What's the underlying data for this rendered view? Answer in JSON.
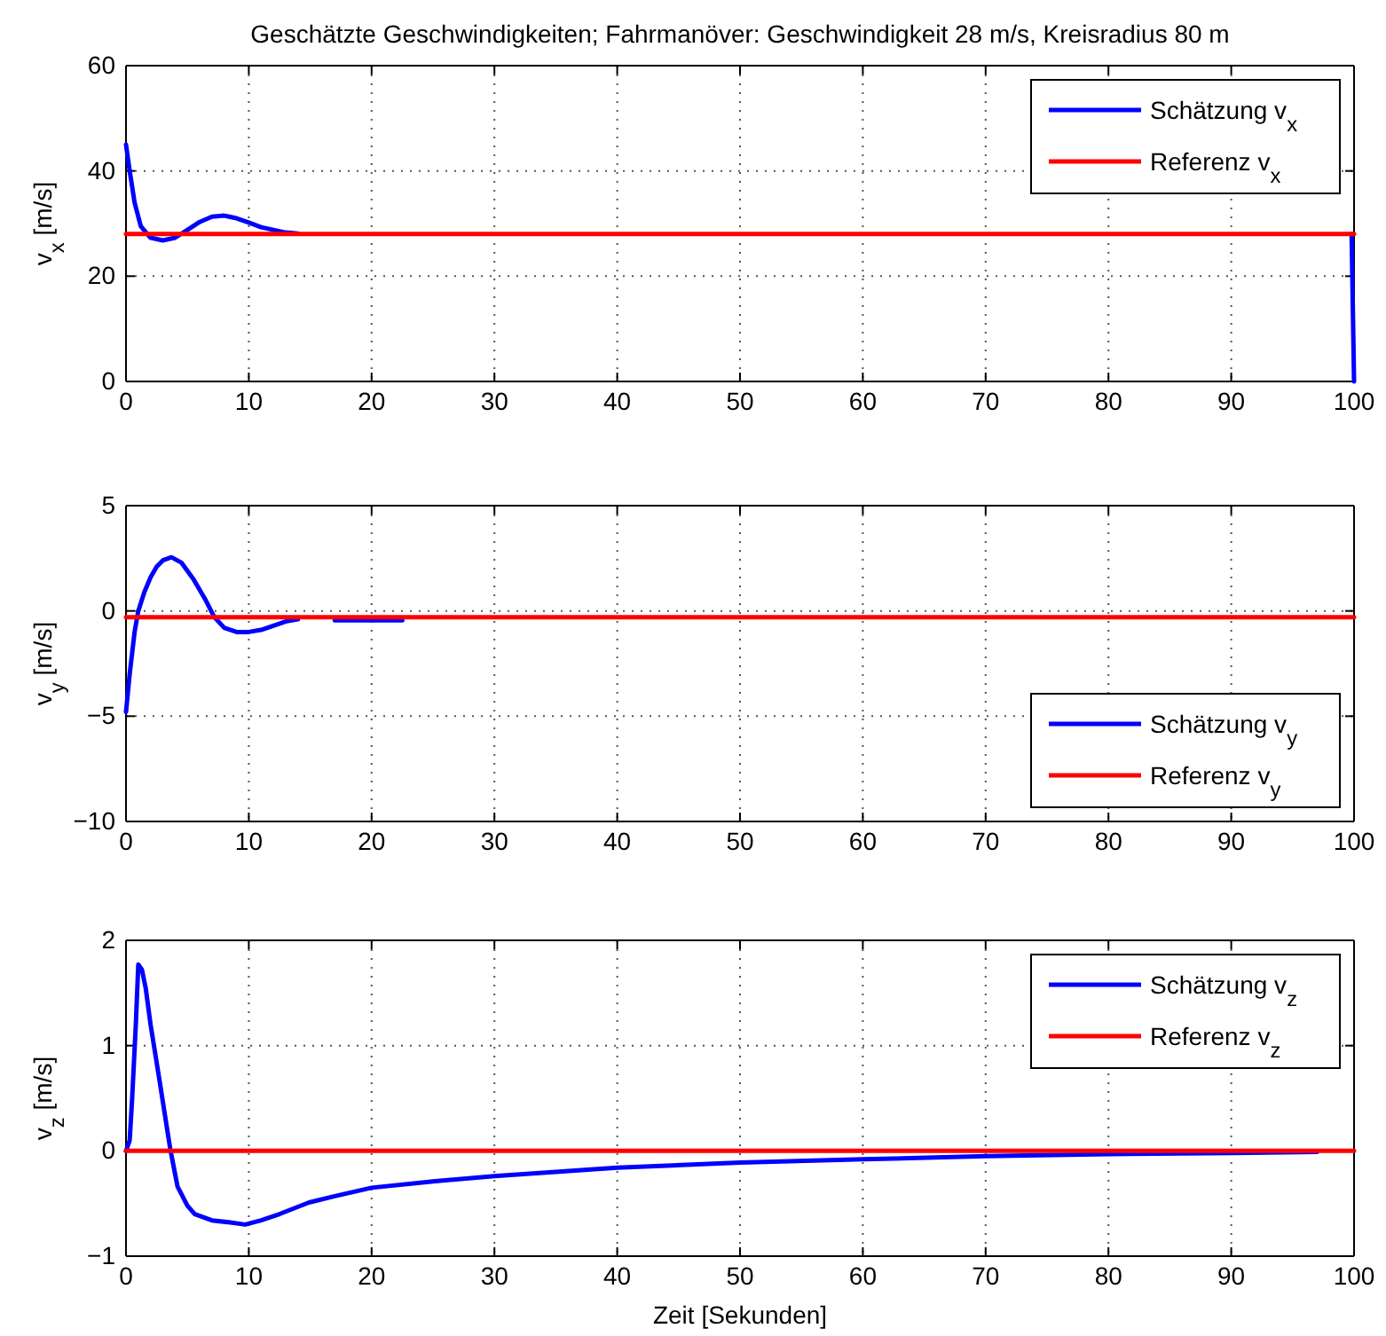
{
  "chart_data": [
    {
      "type": "line",
      "title": "Geschätzte Geschwindigkeiten; Fahrmanöver: Geschwindigkeit 28 m/s, Kreisradius 80 m",
      "ylabel": "v$_{x}$ [m/s]",
      "xlim": [
        0,
        100
      ],
      "xticks": [
        0,
        10,
        20,
        30,
        40,
        50,
        60,
        70,
        80,
        90,
        100
      ],
      "ylim": [
        0,
        60
      ],
      "yticks": [
        0,
        20,
        40,
        60
      ],
      "grid": true,
      "legend": "top right",
      "series": [
        {
          "name": "Schätzung v$_{x}$",
          "color": "#0000ff",
          "x": [
            0,
            0.3,
            0.7,
            1.2,
            2,
            3,
            4,
            5,
            6,
            7,
            8,
            9,
            10,
            11,
            12,
            13,
            14,
            15,
            99.8,
            100
          ],
          "values": [
            45,
            40,
            34,
            29.5,
            27.3,
            26.8,
            27.3,
            28.8,
            30.3,
            31.3,
            31.5,
            31,
            30.2,
            29.3,
            28.8,
            28.3,
            28.1,
            null,
            28,
            0
          ]
        },
        {
          "name": "Referenz v$_{x}$",
          "color": "#ff0000",
          "x": [
            0,
            100
          ],
          "values": [
            28,
            28
          ]
        }
      ]
    },
    {
      "type": "line",
      "ylabel": "v$_{y}$ [m/s]",
      "xlim": [
        0,
        100
      ],
      "xticks": [
        0,
        10,
        20,
        30,
        40,
        50,
        60,
        70,
        80,
        90,
        100
      ],
      "ylim": [
        -10,
        5
      ],
      "yticks": [
        {
          "value": -10,
          "label": "−10"
        },
        {
          "value": -5,
          "label": "−5"
        },
        0,
        5
      ],
      "grid": true,
      "legend": "bottom right",
      "series": [
        {
          "name": "Schätzung v$_{y}$",
          "color": "#0000ff",
          "x": [
            0,
            0.3,
            0.7,
            1,
            1.5,
            2,
            2.5,
            3,
            3.7,
            4.5,
            5.5,
            6.5,
            7.2,
            8,
            9,
            10,
            11,
            12,
            13,
            14,
            15,
            16.5,
            17,
            20,
            22.5
          ],
          "values": [
            -4.8,
            -3,
            -1,
            0,
            0.9,
            1.6,
            2.1,
            2.4,
            2.55,
            2.3,
            1.5,
            0.5,
            -0.3,
            -0.8,
            -1.0,
            -1.0,
            -0.9,
            -0.7,
            -0.5,
            -0.4,
            null,
            null,
            -0.45,
            -0.45,
            -0.45
          ]
        },
        {
          "name": "Referenz v$_{y}$",
          "color": "#ff0000",
          "x": [
            0,
            100
          ],
          "values": [
            -0.3,
            -0.3
          ]
        }
      ]
    },
    {
      "type": "line",
      "ylabel": "v$_{z}$ [m/s]",
      "xlabel": "Zeit [Sekunden]",
      "xlim": [
        0,
        100
      ],
      "xticks": [
        0,
        10,
        20,
        30,
        40,
        50,
        60,
        70,
        80,
        90,
        100
      ],
      "ylim": [
        -1,
        2
      ],
      "yticks": [
        {
          "value": -1,
          "label": "−1"
        },
        0,
        1,
        2
      ],
      "grid": true,
      "legend": "top right",
      "series": [
        {
          "name": "Schätzung v$_{z}$",
          "color": "#0000ff",
          "x": [
            0,
            0.3,
            0.5,
            0.8,
            1.0,
            1.3,
            1.6,
            2,
            2.7,
            3.6,
            4.2,
            5,
            5.6,
            7,
            8.5,
            9.7,
            11,
            12.5,
            14.9,
            17,
            20,
            25,
            30,
            35,
            40,
            50,
            60,
            70,
            80,
            90,
            97
          ],
          "values": [
            0,
            0.1,
            0.5,
            1.2,
            1.77,
            1.72,
            1.55,
            1.2,
            0.69,
            0.02,
            -0.34,
            -0.52,
            -0.6,
            -0.66,
            -0.68,
            -0.7,
            -0.66,
            -0.6,
            -0.49,
            -0.43,
            -0.35,
            -0.29,
            -0.24,
            -0.2,
            -0.16,
            -0.11,
            -0.08,
            -0.05,
            -0.03,
            -0.02,
            -0.01
          ]
        },
        {
          "name": "Referenz v$_{z}$",
          "color": "#ff0000",
          "x": [
            0,
            100
          ],
          "values": [
            0,
            0
          ]
        }
      ]
    }
  ]
}
